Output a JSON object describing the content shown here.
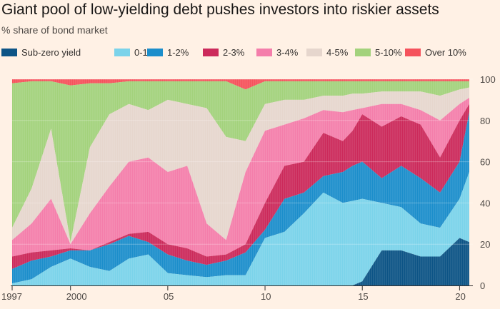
{
  "title": "Giant pool of low-yielding debt pushes investors into riskier assets",
  "subtitle": "% share of bond market",
  "chart_data": {
    "type": "area",
    "stacked": true,
    "x_start_year": 1997,
    "x_end_year": 2020.5,
    "ylim": [
      0,
      100
    ],
    "y_ticks": [
      0,
      20,
      40,
      60,
      80,
      100
    ],
    "y_axis_position": "right",
    "x_ticks": [
      {
        "value": 1997,
        "label": "1997"
      },
      {
        "value": 2000,
        "label": "2000"
      },
      {
        "value": 2005,
        "label": "05"
      },
      {
        "value": 2010,
        "label": "10"
      },
      {
        "value": 2015,
        "label": "15"
      },
      {
        "value": 2020,
        "label": "20"
      }
    ],
    "legend_position": "top",
    "x": [
      1997.0,
      1998.0,
      1999.0,
      2000.0,
      2001.0,
      2002.0,
      2003.0,
      2004.0,
      2005.0,
      2006.0,
      2007.0,
      2008.0,
      2009.0,
      2010.0,
      2011.0,
      2012.0,
      2013.0,
      2014.0,
      2014.5,
      2015.0,
      2016.0,
      2017.0,
      2018.0,
      2019.0,
      2020.0,
      2020.5
    ],
    "series": [
      {
        "name": "Sub-zero yield",
        "color": "#0d5486",
        "cumulative": [
          0,
          0,
          0,
          0,
          0,
          0,
          0,
          0,
          0,
          0,
          0,
          0,
          0,
          0,
          0,
          0,
          0,
          0,
          0,
          2,
          17,
          17,
          14,
          14,
          23,
          21
        ]
      },
      {
        "name": "0-1%",
        "color": "#7bd3ea",
        "cumulative": [
          1,
          3,
          9,
          13,
          9,
          7,
          13,
          15,
          6,
          5,
          4,
          5,
          5,
          23,
          26,
          35,
          45,
          40,
          41,
          42,
          40,
          38,
          30,
          28,
          42,
          55
        ]
      },
      {
        "name": "1-2%",
        "color": "#1c8ecb",
        "cumulative": [
          8,
          12,
          14,
          17,
          17,
          20,
          24,
          21,
          15,
          12,
          10,
          12,
          16,
          27,
          42,
          45,
          53,
          55,
          58,
          60,
          52,
          58,
          52,
          45,
          60,
          84
        ]
      },
      {
        "name": "2-3%",
        "color": "#cc2a5b",
        "cumulative": [
          14,
          16,
          17,
          18,
          17,
          21,
          25,
          26,
          20,
          18,
          14,
          15,
          20,
          40,
          58,
          60,
          74,
          70,
          75,
          83,
          77,
          82,
          78,
          62,
          80,
          88
        ]
      },
      {
        "name": "3-4%",
        "color": "#f47eab",
        "cumulative": [
          22,
          30,
          42,
          20,
          35,
          48,
          60,
          62,
          55,
          58,
          30,
          22,
          55,
          75,
          78,
          81,
          85,
          84,
          85,
          86,
          88,
          88,
          85,
          80,
          88,
          91
        ]
      },
      {
        "name": "4-5%",
        "color": "#e6d6cd",
        "cumulative": [
          28,
          47,
          76,
          21,
          67,
          83,
          88,
          85,
          90,
          88,
          86,
          72,
          70,
          88,
          90,
          90,
          92,
          92,
          93,
          93,
          94,
          94,
          94,
          92,
          95,
          96
        ]
      },
      {
        "name": "5-10%",
        "color": "#a3d27c",
        "cumulative": [
          98,
          99,
          99,
          97,
          98,
          98,
          99,
          99,
          99,
          99,
          99,
          99,
          95,
          99,
          99,
          99,
          99,
          99,
          99,
          99,
          99,
          99,
          99,
          99,
          99,
          99
        ]
      },
      {
        "name": "Over 10%",
        "color": "#f5525c",
        "cumulative": [
          100,
          100,
          100,
          100,
          100,
          100,
          100,
          100,
          100,
          100,
          100,
          100,
          100,
          100,
          100,
          100,
          100,
          100,
          100,
          100,
          100,
          100,
          100,
          100,
          100,
          100
        ]
      }
    ]
  }
}
